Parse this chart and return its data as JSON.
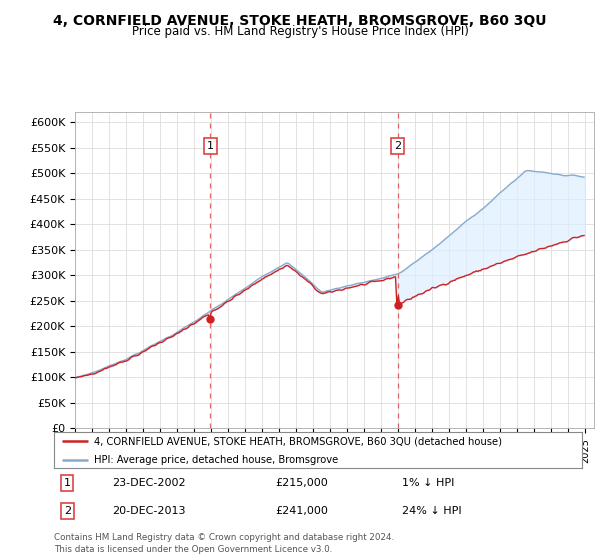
{
  "title": "4, CORNFIELD AVENUE, STOKE HEATH, BROMSGROVE, B60 3QU",
  "subtitle": "Price paid vs. HM Land Registry's House Price Index (HPI)",
  "house_color": "#cc2222",
  "hpi_color": "#88aacc",
  "vline_color": "#dd4444",
  "bg_color": "#ffffff",
  "grid_color": "#dddddd",
  "fill_color": "#ddeeff",
  "ylim": [
    0,
    620000
  ],
  "yticks": [
    0,
    50000,
    100000,
    150000,
    200000,
    250000,
    300000,
    350000,
    400000,
    450000,
    500000,
    550000,
    600000
  ],
  "ytick_labels": [
    "£0",
    "£50K",
    "£100K",
    "£150K",
    "£200K",
    "£250K",
    "£300K",
    "£350K",
    "£400K",
    "£450K",
    "£500K",
    "£550K",
    "£600K"
  ],
  "xlim_start": 1995.0,
  "xlim_end": 2025.5,
  "marker1_year": 2002.958,
  "marker1_price": 215000,
  "marker1_date": "23-DEC-2002",
  "marker1_note": "1% ↓ HPI",
  "marker2_year": 2013.958,
  "marker2_price": 241000,
  "marker2_date": "20-DEC-2013",
  "marker2_note": "24% ↓ HPI",
  "legend_line1": "4, CORNFIELD AVENUE, STOKE HEATH, BROMSGROVE, B60 3QU (detached house)",
  "legend_line2": "HPI: Average price, detached house, Bromsgrove",
  "footer": "Contains HM Land Registry data © Crown copyright and database right 2024.\nThis data is licensed under the Open Government Licence v3.0."
}
